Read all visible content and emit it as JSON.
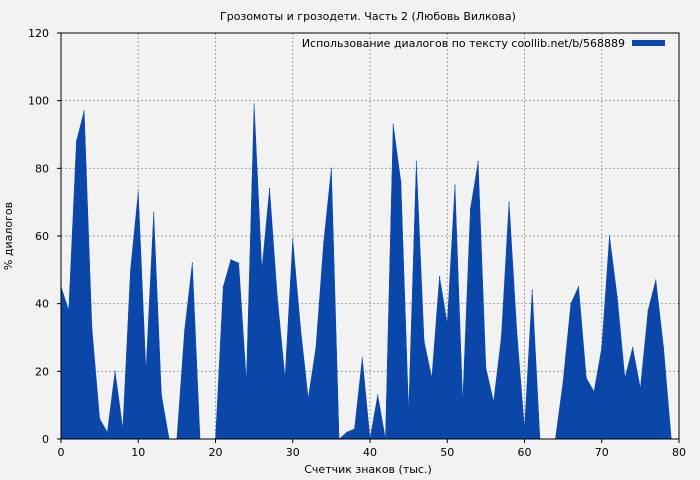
{
  "chart_data": {
    "type": "area",
    "title": "Грозомоты и грозодети. Часть 2 (Любовь Вилкова)",
    "xlabel": "Счетчик знаков (тыс.)",
    "ylabel": "% диалогов",
    "xlim": [
      0,
      80
    ],
    "ylim": [
      0,
      120
    ],
    "xticks": [
      0,
      10,
      20,
      30,
      40,
      50,
      60,
      70,
      80
    ],
    "yticks": [
      0,
      20,
      40,
      60,
      80,
      100,
      120
    ],
    "grid": true,
    "legend_position": "top-right",
    "series": [
      {
        "name": "Использование диалогов по тексту coollib.net/b/568889",
        "color": "#0a47a9",
        "x": [
          0,
          1,
          2,
          3,
          4,
          5,
          6,
          7,
          8,
          9,
          10,
          11,
          12,
          13,
          14,
          15,
          16,
          17,
          18,
          19,
          20,
          21,
          22,
          23,
          24,
          25,
          26,
          27,
          28,
          29,
          30,
          31,
          32,
          33,
          34,
          35,
          36,
          37,
          38,
          39,
          40,
          41,
          42,
          43,
          44,
          45,
          46,
          47,
          48,
          49,
          50,
          51,
          52,
          53,
          54,
          55,
          56,
          57,
          58,
          59,
          60,
          61,
          62,
          63,
          64,
          65,
          66,
          67,
          68,
          69,
          70,
          71,
          72,
          73,
          74,
          75,
          76,
          77,
          78,
          79
        ],
        "y": [
          45,
          38,
          88,
          97,
          33,
          6,
          2,
          20,
          3,
          50,
          73,
          20,
          67,
          13,
          0,
          0,
          32,
          52,
          0,
          0,
          0,
          45,
          53,
          52,
          17,
          99,
          50,
          74,
          42,
          18,
          59,
          33,
          12,
          27,
          58,
          80,
          0,
          2,
          3,
          24,
          0,
          13,
          0,
          93,
          76,
          8,
          82,
          29,
          18,
          48,
          34,
          75,
          11,
          68,
          82,
          21,
          11,
          30,
          70,
          32,
          3,
          44,
          0,
          0,
          0,
          17,
          40,
          45,
          18,
          14,
          27,
          60,
          42,
          18,
          27,
          15,
          38,
          47,
          27,
          0
        ]
      }
    ]
  }
}
